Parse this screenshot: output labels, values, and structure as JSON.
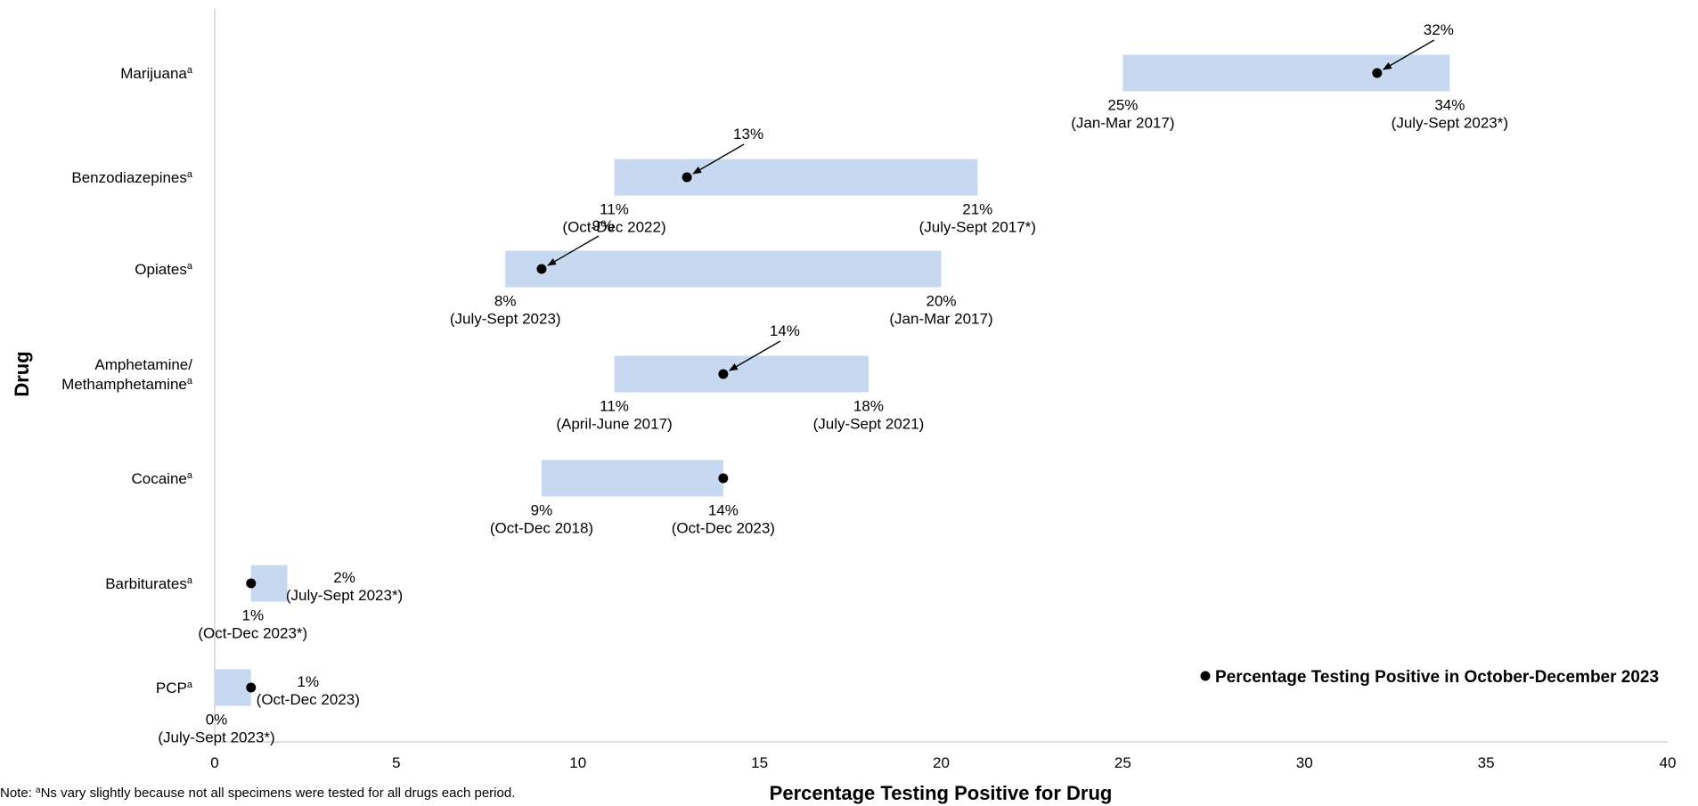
{
  "chart_data": {
    "type": "range-bar",
    "xlabel": "Percentage Testing Positive for Drug",
    "ylabel": "Drug",
    "xlim": [
      0,
      40
    ],
    "xticks": [
      "0",
      "5",
      "10",
      "15",
      "20",
      "25",
      "30",
      "35",
      "40"
    ],
    "xtick_values": [
      0,
      5,
      10,
      15,
      20,
      25,
      30,
      35,
      40
    ],
    "bar_color": "#c6d9f1",
    "point_color": "#000000",
    "legend": {
      "label": "Percentage Testing Positive in October-December 2023",
      "placement": "bottom-right"
    },
    "series": [
      {
        "drug": "Marijuana",
        "sup": "a",
        "min": 25,
        "min_label": "25%",
        "min_period": "(Jan-Mar 2017)",
        "max": 34,
        "max_label": "34%",
        "max_period": "(July-Sept 2023*)",
        "current": 32,
        "current_label": "32%"
      },
      {
        "drug": "Benzodiazepines",
        "sup": "a",
        "min": 11,
        "min_label": "11%",
        "min_period": "(Oct-Dec 2022)",
        "max": 21,
        "max_label": "21%",
        "max_period": "(July-Sept 2017*)",
        "current": 13,
        "current_label": "13%"
      },
      {
        "drug": "Opiates",
        "sup": "a",
        "min": 8,
        "min_label": "8%",
        "min_period": "(July-Sept 2023)",
        "max": 20,
        "max_label": "20%",
        "max_period": "(Jan-Mar 2017)",
        "current": 9,
        "current_label": "9%"
      },
      {
        "drug": "Amphetamine/\nMethamphetamine",
        "sup": "a",
        "min": 11,
        "min_label": "11%",
        "min_period": "(April-June 2017)",
        "max": 18,
        "max_label": "18%",
        "max_period": "(July-Sept 2021)",
        "current": 14,
        "current_label": "14%"
      },
      {
        "drug": "Cocaine",
        "sup": "a",
        "min": 9,
        "min_label": "9%",
        "min_period": "(Oct-Dec 2018)",
        "max": 14,
        "max_label": "14%",
        "max_period": "(Oct-Dec 2023)",
        "current": 14,
        "current_label": ""
      },
      {
        "drug": "Barbiturates",
        "sup": "a",
        "min": 1,
        "min_label": "1%",
        "min_period": "(Oct-Dec 2023*)",
        "max": 2,
        "max_label": "2%",
        "max_period": "(July-Sept 2023*)",
        "current": 1,
        "current_label": ""
      },
      {
        "drug": "PCP",
        "sup": "a",
        "min": 0,
        "min_label": "0%",
        "min_period": "(July-Sept 2023*)",
        "max": 1,
        "max_label": "1%",
        "max_period": "(Oct-Dec 2023)",
        "current": 1,
        "current_label": ""
      }
    ]
  },
  "notes": {
    "note_prefix": "Note: ",
    "note_sup": "a",
    "note_text": "Ns vary slightly because not all specimens were tested for all drugs each period."
  }
}
